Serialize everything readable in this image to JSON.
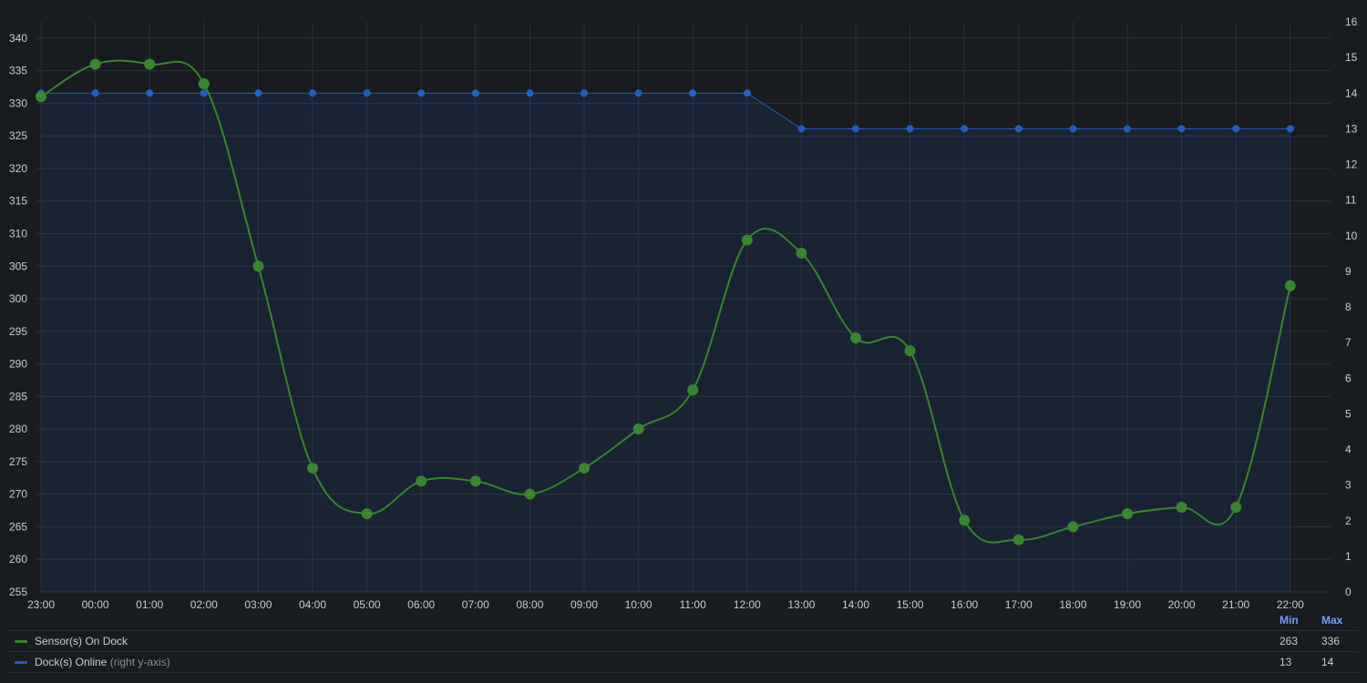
{
  "colors": {
    "background": "#181b1f",
    "plot_fill": "#1a2233",
    "grid": "#2c3038",
    "sensors": "#37872d",
    "docks": "#1f60c4",
    "legend_header": "#6e9fff"
  },
  "legend": {
    "min_label": "Min",
    "max_label": "Max",
    "rows": [
      {
        "name": "Sensor(s) On Dock",
        "hint": "",
        "min": "263",
        "max": "336",
        "color": "#37872d"
      },
      {
        "name": "Dock(s) Online",
        "hint": "(right y-axis)",
        "min": "13",
        "max": "14",
        "color": "#1f60c4"
      }
    ]
  },
  "chart_data": {
    "type": "line",
    "categories": [
      "23:00",
      "00:00",
      "01:00",
      "02:00",
      "03:00",
      "04:00",
      "05:00",
      "06:00",
      "07:00",
      "08:00",
      "09:00",
      "10:00",
      "11:00",
      "12:00",
      "13:00",
      "14:00",
      "15:00",
      "16:00",
      "17:00",
      "18:00",
      "19:00",
      "20:00",
      "21:00",
      "22:00"
    ],
    "y_left": {
      "min": 255,
      "max": 340,
      "ticks": [
        255,
        260,
        265,
        270,
        275,
        280,
        285,
        290,
        295,
        300,
        305,
        310,
        315,
        320,
        325,
        330,
        335,
        340
      ],
      "top_extent": 342.5
    },
    "y_right": {
      "min": 0,
      "max": 16,
      "ticks": [
        0,
        1,
        2,
        3,
        4,
        5,
        6,
        7,
        8,
        9,
        10,
        11,
        12,
        13,
        14,
        15,
        16
      ]
    },
    "grid": true,
    "legend_position": "bottom",
    "series": [
      {
        "name": "Sensor(s) On Dock",
        "axis": "left",
        "color": "#37872d",
        "values": [
          331,
          336,
          336,
          333,
          305,
          274,
          267,
          272,
          272,
          270,
          274,
          280,
          286,
          309,
          307,
          294,
          292,
          266,
          263,
          265,
          267,
          268,
          268,
          302
        ]
      },
      {
        "name": "Dock(s) Online",
        "axis": "right",
        "color": "#1f60c4",
        "values": [
          14,
          14,
          14,
          14,
          14,
          14,
          14,
          14,
          14,
          14,
          14,
          14,
          14,
          14,
          13,
          13,
          13,
          13,
          13,
          13,
          13,
          13,
          13,
          13
        ]
      }
    ]
  }
}
